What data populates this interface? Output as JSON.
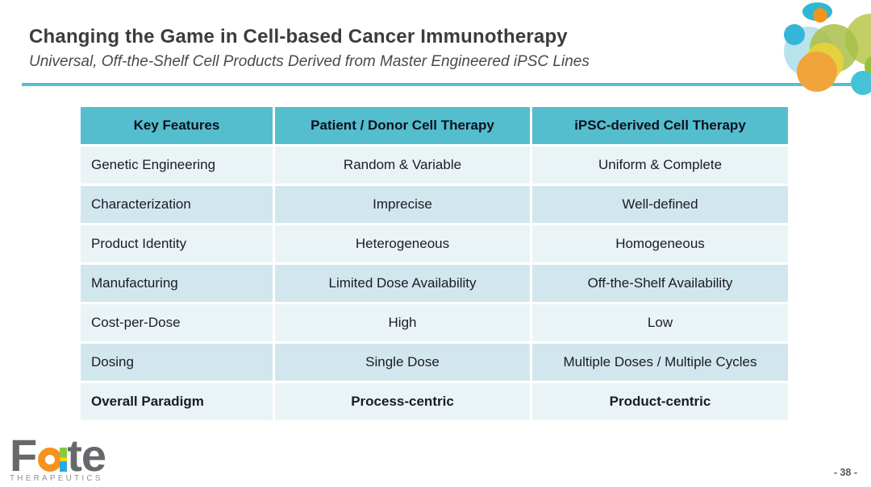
{
  "slide": {
    "title": "Changing the Game in Cell-based Cancer Immunotherapy",
    "subtitle": "Universal, Off-the-Shelf Cell Products Derived from Master Engineered iPSC Lines",
    "page_number": "- 38 -"
  },
  "logo": {
    "wordmark_f": "F",
    "wordmark_te": "te",
    "subtext": "THERAPEUTICS"
  },
  "table": {
    "headers": [
      "Key Features",
      "Patient / Donor Cell Therapy",
      "iPSC-derived Cell Therapy"
    ],
    "rows": [
      [
        "Genetic Engineering",
        "Random & Variable",
        "Uniform & Complete"
      ],
      [
        "Characterization",
        "Imprecise",
        "Well-defined"
      ],
      [
        "Product Identity",
        "Heterogeneous",
        "Homogeneous"
      ],
      [
        "Manufacturing",
        "Limited Dose Availability",
        "Off-the-Shelf Availability"
      ],
      [
        "Cost-per-Dose",
        "High",
        "Low"
      ],
      [
        "Dosing",
        "Single Dose",
        "Multiple Doses / Multiple Cycles"
      ],
      [
        "Overall Paradigm",
        "Process-centric",
        "Product-centric"
      ]
    ],
    "bold_row_index": 6
  },
  "colors": {
    "accent_teal": "#56BFCE",
    "header_bg": "#55BECE",
    "row_light": "#EAF4F7",
    "row_dark": "#D2E7ED",
    "logo_gray": "#66686B",
    "logo_orange": "#F6921E",
    "logo_green": "#8DC63F",
    "logo_yellow": "#FFD21E",
    "logo_blue": "#29ABE2"
  }
}
